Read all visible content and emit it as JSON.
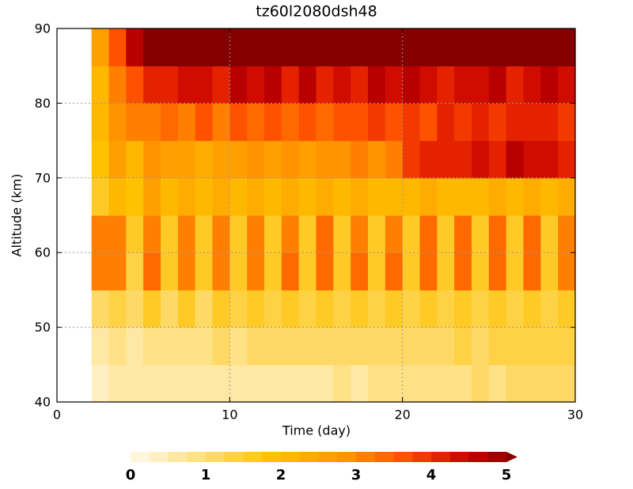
{
  "chart_data": {
    "type": "heatmap",
    "title": "tz60l2080dsh48",
    "x_label": "Time (day)",
    "y_label": "Altitude (km)",
    "xlim": [
      0,
      30
    ],
    "ylim": [
      40,
      90
    ],
    "xticks": [
      0,
      10,
      20,
      30
    ],
    "yticks": [
      40,
      50,
      60,
      70,
      80,
      90
    ],
    "grid": true,
    "x": [
      0.5,
      1.5,
      2.5,
      3.5,
      4.5,
      5.5,
      6.5,
      7.5,
      8.5,
      9.5,
      10.5,
      11.5,
      12.5,
      13.5,
      14.5,
      15.5,
      16.5,
      17.5,
      18.5,
      19.5,
      20.5,
      21.5,
      22.5,
      23.5,
      24.5,
      25.5,
      26.5,
      27.5,
      28.5,
      29.5
    ],
    "y": [
      42.5,
      47.5,
      52.5,
      57.5,
      62.5,
      67.5,
      72.5,
      77.5,
      82.5,
      87.5
    ],
    "z": [
      [
        null,
        null,
        0.4,
        0.5,
        0.6,
        0.5,
        0.6,
        0.5,
        0.6,
        0.6,
        0.7,
        0.6,
        0.7,
        0.6,
        0.7,
        0.7,
        0.8,
        0.7,
        0.8,
        0.8,
        0.9,
        0.8,
        0.9,
        0.9,
        1.0,
        0.9,
        1.0,
        1.0,
        1.0,
        1.0
      ],
      [
        null,
        null,
        0.6,
        0.8,
        0.7,
        0.9,
        0.8,
        0.9,
        0.9,
        1.0,
        0.9,
        1.0,
        1.0,
        1.0,
        1.1,
        1.0,
        1.1,
        1.1,
        1.2,
        1.1,
        1.2,
        1.2,
        1.2,
        1.3,
        1.2,
        1.3,
        1.3,
        1.3,
        1.3,
        1.3
      ],
      [
        null,
        null,
        1.0,
        1.4,
        1.1,
        1.5,
        1.2,
        1.5,
        1.2,
        1.5,
        1.3,
        1.5,
        1.3,
        1.5,
        1.3,
        1.6,
        1.3,
        1.6,
        1.4,
        1.6,
        1.4,
        1.6,
        1.4,
        1.6,
        1.4,
        1.6,
        1.4,
        1.6,
        1.4,
        1.6
      ],
      [
        null,
        null,
        3.0,
        3.2,
        1.4,
        3.3,
        1.5,
        3.2,
        1.5,
        3.2,
        1.5,
        3.2,
        1.5,
        3.3,
        1.5,
        3.4,
        1.5,
        3.3,
        1.5,
        3.3,
        1.5,
        3.4,
        1.5,
        3.4,
        1.5,
        3.4,
        1.5,
        3.4,
        1.5,
        3.2
      ],
      [
        null,
        null,
        3.2,
        3.0,
        1.6,
        3.2,
        1.7,
        3.0,
        1.7,
        3.0,
        1.7,
        3.1,
        1.7,
        3.1,
        1.7,
        3.3,
        1.7,
        3.2,
        1.7,
        3.2,
        1.7,
        3.3,
        1.7,
        3.3,
        1.7,
        3.3,
        1.7,
        3.3,
        1.7,
        3.1
      ],
      [
        null,
        null,
        1.6,
        2.2,
        1.9,
        2.5,
        2.0,
        2.4,
        2.1,
        2.3,
        2.0,
        2.4,
        2.1,
        2.3,
        2.0,
        2.4,
        2.1,
        2.3,
        2.0,
        2.2,
        2.0,
        2.3,
        2.1,
        2.2,
        2.1,
        2.3,
        2.2,
        2.3,
        2.2,
        2.3
      ],
      [
        null,
        null,
        1.8,
        2.5,
        2.2,
        2.8,
        2.5,
        2.6,
        2.4,
        2.7,
        2.5,
        2.8,
        2.6,
        2.9,
        2.7,
        2.8,
        2.8,
        3.0,
        2.9,
        3.0,
        3.8,
        4.0,
        4.2,
        4.1,
        4.3,
        4.2,
        4.5,
        4.3,
        4.4,
        4.2
      ],
      [
        null,
        null,
        2.0,
        2.8,
        3.0,
        3.2,
        3.4,
        3.0,
        3.5,
        3.2,
        3.6,
        3.4,
        3.5,
        3.3,
        3.6,
        3.4,
        3.5,
        3.7,
        3.8,
        3.6,
        3.9,
        3.7,
        4.0,
        3.8,
        4.1,
        3.9,
        4.2,
        4.0,
        4.1,
        3.9
      ],
      [
        null,
        null,
        2.2,
        3.0,
        3.5,
        4.0,
        4.2,
        4.3,
        4.4,
        4.2,
        4.5,
        4.3,
        4.6,
        4.2,
        4.5,
        4.0,
        4.4,
        4.2,
        4.6,
        4.4,
        4.5,
        4.3,
        4.2,
        4.4,
        4.3,
        4.5,
        4.2,
        4.4,
        4.5,
        4.3
      ],
      [
        null,
        null,
        2.5,
        3.5,
        4.5,
        5.2,
        5.3,
        5.3,
        5.4,
        5.3,
        5.3,
        5.4,
        5.3,
        5.3,
        5.4,
        5.3,
        5.3,
        5.2,
        5.3,
        5.3,
        5.4,
        5.0,
        5.3,
        5.3,
        5.2,
        5.3,
        5.3,
        5.3,
        5.2,
        5.3
      ]
    ],
    "levels": [
      0,
      0.25,
      0.5,
      0.75,
      1,
      1.25,
      1.5,
      1.75,
      2,
      2.25,
      2.5,
      2.75,
      3,
      3.25,
      3.5,
      3.75,
      4,
      4.25,
      4.5,
      4.75,
      5
    ],
    "colors": [
      "#fff6dc",
      "#ffefc2",
      "#ffe8a4",
      "#ffe186",
      "#ffd966",
      "#ffd246",
      "#ffca26",
      "#ffc200",
      "#ffb800",
      "#ffac00",
      "#ffa000",
      "#ff9400",
      "#ff8000",
      "#ff6a00",
      "#ff5200",
      "#f23a00",
      "#e42200",
      "#d00c00",
      "#b80000",
      "#a00000",
      "#840000"
    ],
    "colorbar_ticks": [
      0,
      1,
      2,
      3,
      4,
      5
    ]
  }
}
